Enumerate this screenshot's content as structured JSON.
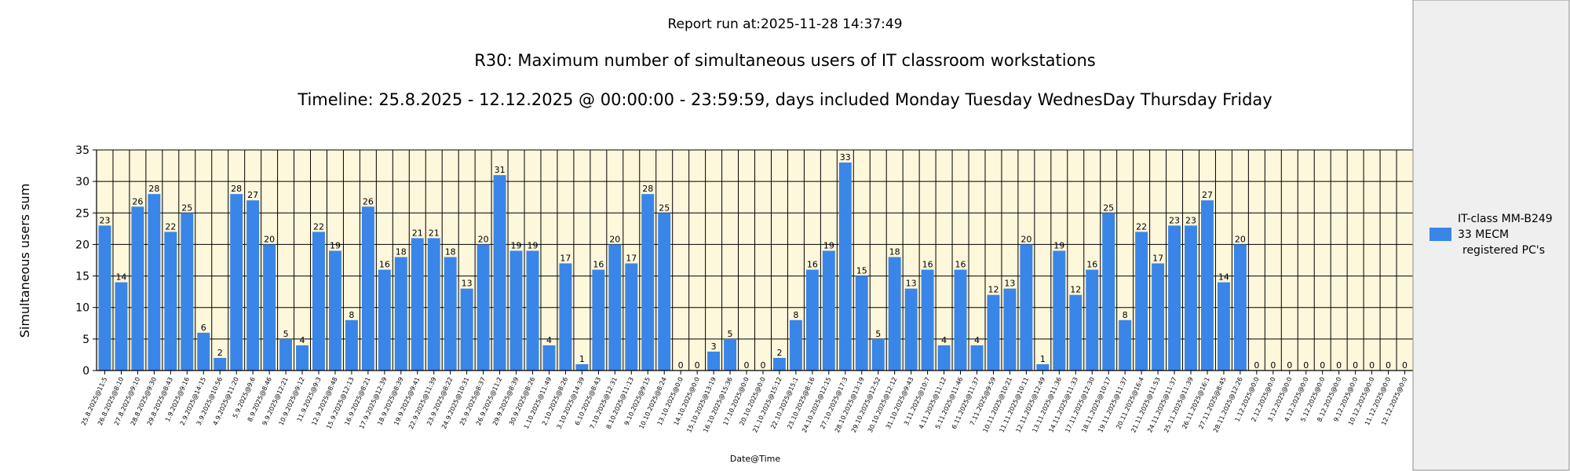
{
  "report_run": "Report run at:2025-11-28 14:37:49",
  "chart_data": {
    "type": "bar",
    "title": "R30: Maximum number of simultaneous users of IT classroom workstations",
    "subtitle": "Timeline: 25.8.2025  - 12.12.2025  @  00:00:00 -  23:59:59, days included Monday Tuesday WednesDay Thursday Friday",
    "xlabel": "Date@Time",
    "ylabel": "Simultaneous users sum",
    "ylim": [
      0,
      35
    ],
    "yticks": [
      "0",
      "5",
      "10",
      "15",
      "20",
      "25",
      "30",
      "35"
    ],
    "grid": true,
    "legend_position": "right",
    "colors": {
      "bar": "#3a85e8",
      "plot_bg": "#fdf7dc",
      "grid": "#000000"
    },
    "categories": [
      "25.8.2025@11:5",
      "26.8.2025@8:10",
      "27.8.2025@9:10",
      "28.8.2025@9:30",
      "29.8.2025@8:43",
      "1.9.2025@9:16",
      "2.9.2025@14:15",
      "3.9.2025@10:56",
      "4.9.2025@11:20",
      "5.9.2025@9:6",
      "8.9.2025@8:46",
      "9.9.2025@12:21",
      "10.9.2025@9:12",
      "11.9.2025@9:3",
      "12.9.2025@8:48",
      "15.9.2025@12:13",
      "16.9.2025@8:21",
      "17.9.2025@12:39",
      "18.9.2025@8:39",
      "19.9.2025@9:41",
      "22.9.2025@11:39",
      "23.9.2025@8:22",
      "24.9.2025@10:31",
      "25.9.2025@8:37",
      "26.9.2025@11:2",
      "29.9.2025@8:39",
      "30.9.2025@8:26",
      "1.10.2025@11:49",
      "2.10.2025@8:26",
      "3.10.2025@14:39",
      "6.10.2025@8:43",
      "7.10.2025@12:31",
      "8.10.2025@11:13",
      "9.10.2025@9:15",
      "10.10.2025@8:24",
      "13.10.2025@0:0",
      "14.10.2025@0:0",
      "15.10.2025@13:19",
      "16.10.2025@15:36",
      "17.10.2025@0:0",
      "20.10.2025@0:0",
      "21.10.2025@15:12",
      "22.10.2025@15:1",
      "23.10.2025@8:16",
      "24.10.2025@12:15",
      "27.10.2025@17:3",
      "28.10.2025@13:19",
      "29.10.2025@12:52",
      "30.10.2025@12:12",
      "31.10.2025@9:43",
      "3.11.2025@10:7",
      "4.11.2025@11:12",
      "5.11.2025@11:46",
      "6.11.2025@11:37",
      "7.11.2025@9:59",
      "10.11.2025@10:21",
      "11.11.2025@10:11",
      "12.11.2025@12:49",
      "13.11.2025@11:36",
      "14.11.2025@11:33",
      "17.11.2025@12:30",
      "18.11.2025@10:17",
      "19.11.2025@11:37",
      "20.11.2025@16:4",
      "21.11.2025@11:53",
      "24.11.2025@11:37",
      "25.11.2025@11:39",
      "26.11.2025@16:1",
      "27.11.2025@8:45",
      "28.11.2025@12:26",
      "1.12.2025@0:0",
      "2.12.2025@0:0",
      "3.12.2025@0:0",
      "4.12.2025@0:0",
      "5.12.2025@0:0",
      "8.12.2025@0:0",
      "9.12.2025@0:0",
      "10.12.2025@0:0",
      "11.12.2025@0:0",
      "12.12.2025@0:0"
    ],
    "series": [
      {
        "name": "IT-class MM-B249 33 MECM registered PC's",
        "values": [
          23,
          14,
          26,
          28,
          22,
          25,
          6,
          2,
          28,
          27,
          20,
          5,
          4,
          22,
          19,
          8,
          26,
          16,
          18,
          21,
          21,
          18,
          13,
          20,
          31,
          19,
          19,
          4,
          17,
          1,
          16,
          20,
          17,
          28,
          25,
          0,
          0,
          3,
          5,
          0,
          0,
          2,
          8,
          16,
          19,
          33,
          15,
          5,
          18,
          13,
          16,
          4,
          16,
          4,
          12,
          13,
          20,
          1,
          19,
          12,
          16,
          25,
          8,
          22,
          17,
          23,
          23,
          27,
          14,
          20,
          0,
          0,
          0,
          0,
          0,
          0,
          0,
          0,
          0,
          0
        ]
      }
    ]
  },
  "legend": {
    "line1": "IT-class MM-B249",
    "line2": "33 MECM",
    "line3": "registered PC's"
  }
}
